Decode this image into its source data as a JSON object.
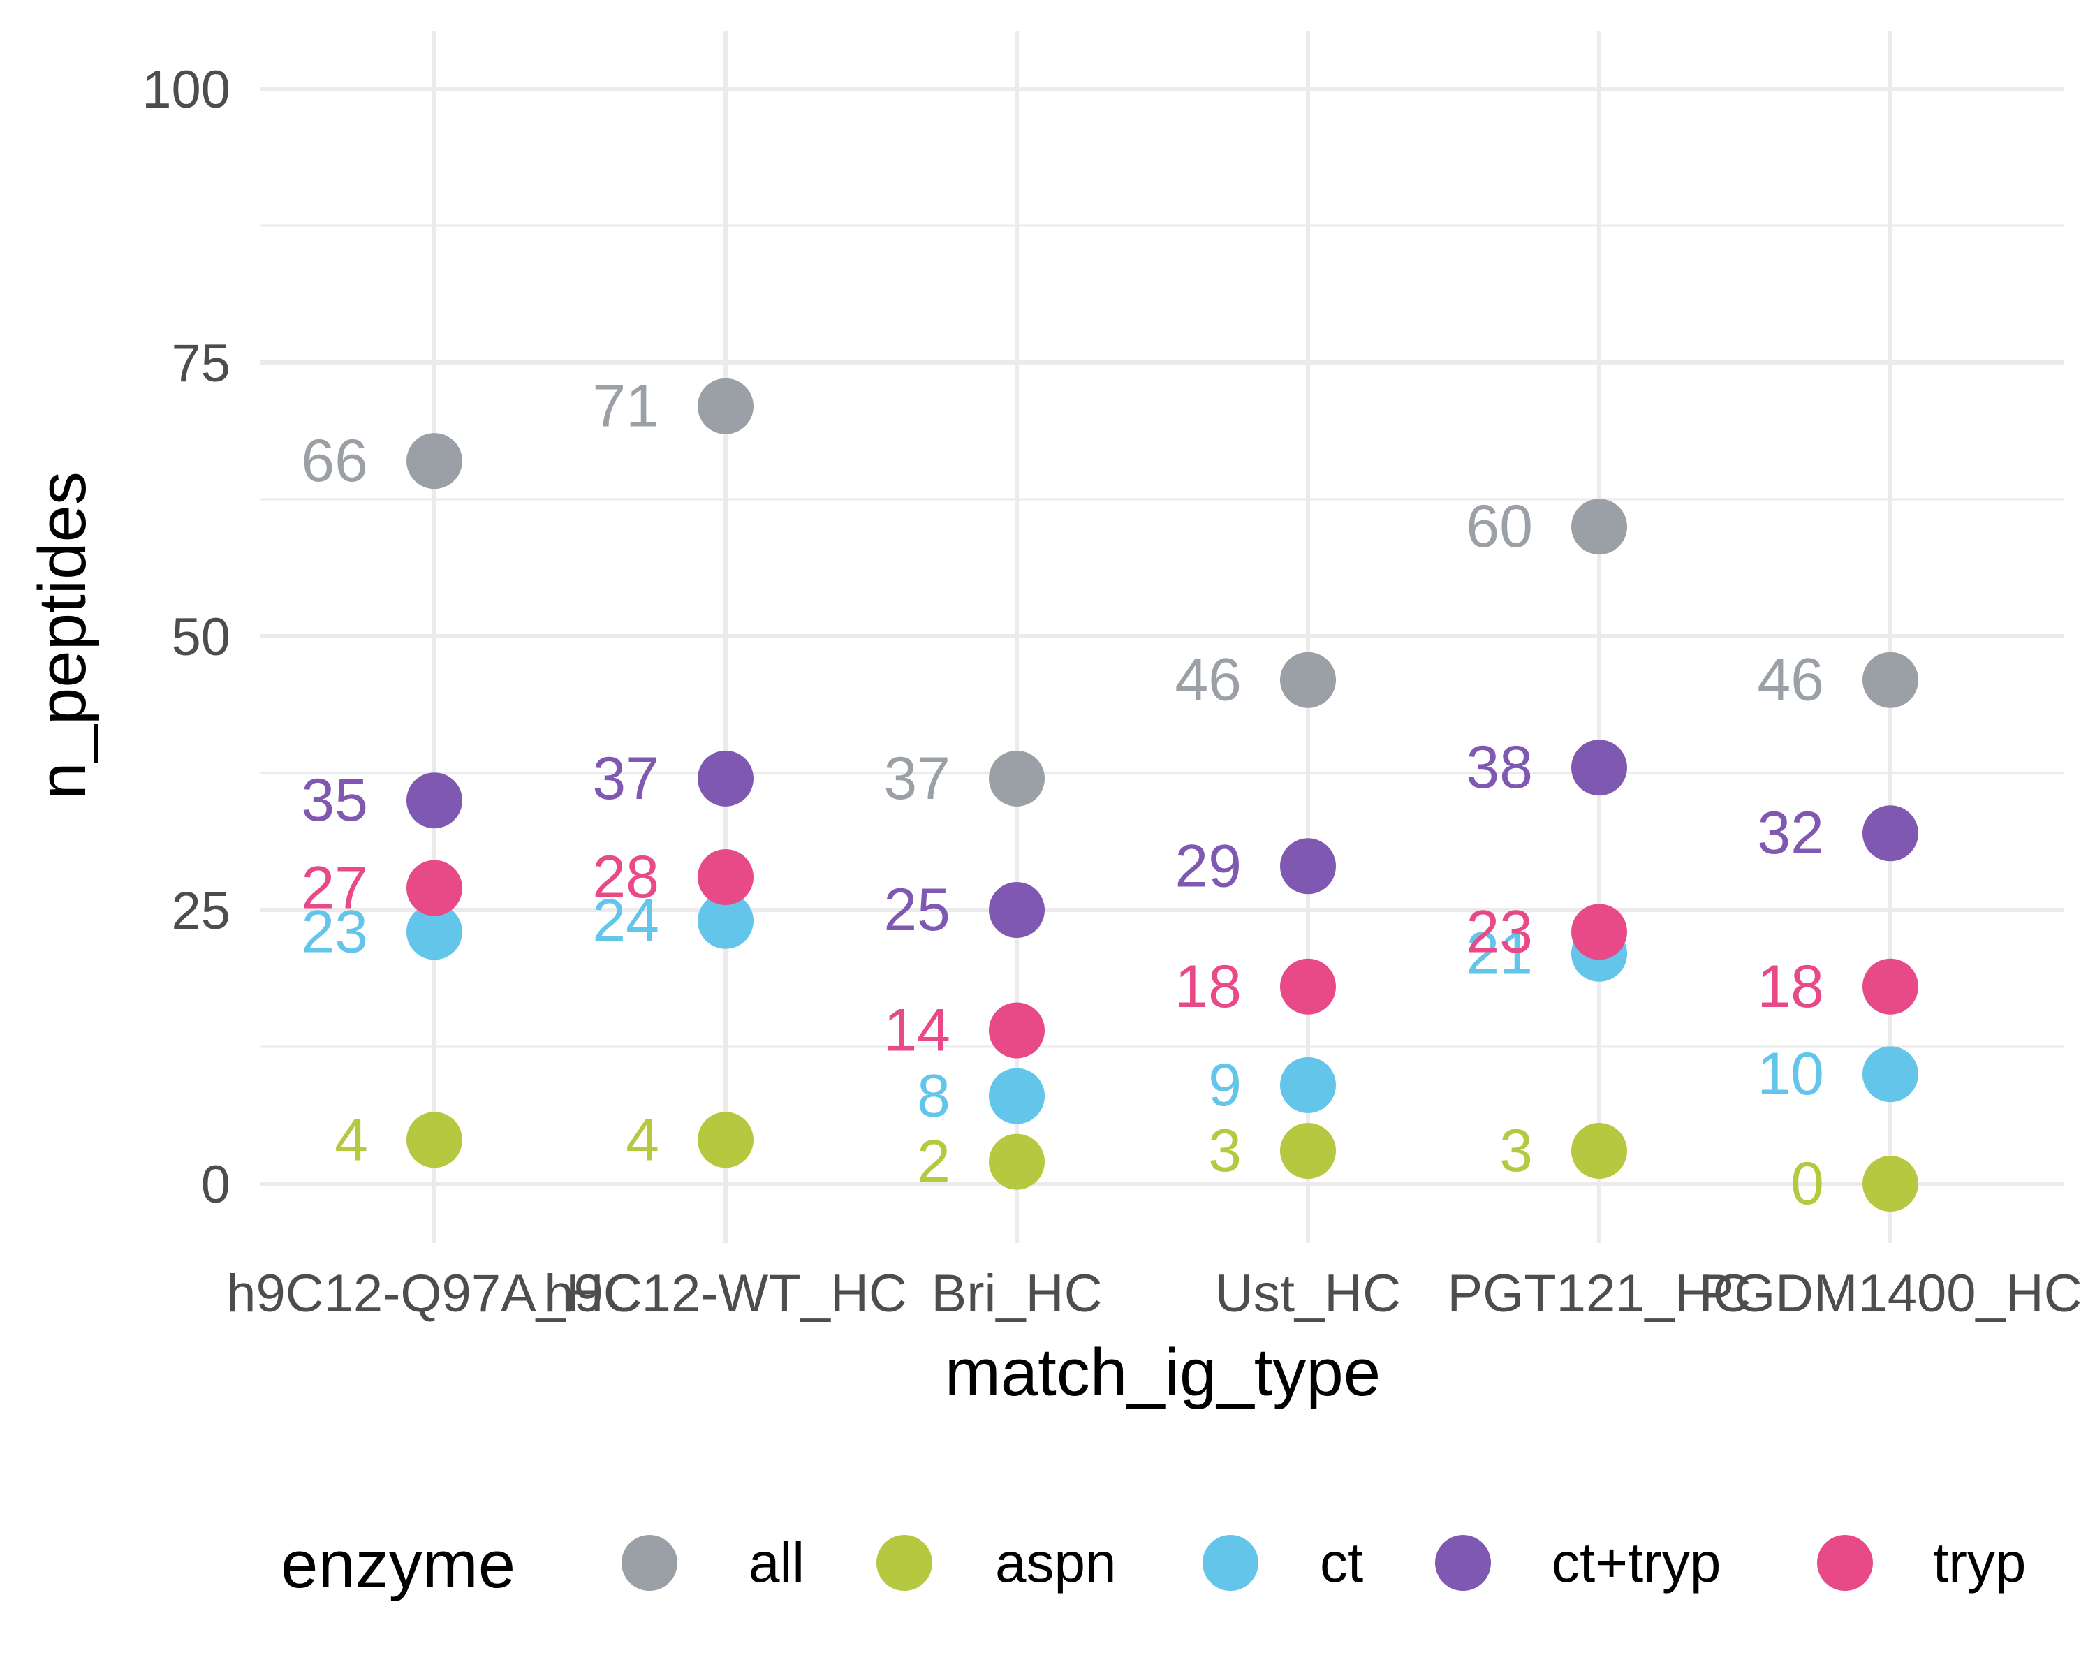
{
  "chart_data": {
    "type": "scatter",
    "title": "",
    "xlabel": "match_ig_type",
    "ylabel": "n_peptides",
    "categories": [
      "h9C12-Q97A_HC",
      "h9C12-WT_HC",
      "Bri_HC",
      "Ust_HC",
      "PGT121_HC",
      "PGDM1400_HC"
    ],
    "ylim": [
      0,
      100
    ],
    "yticks": [
      0,
      25,
      50,
      75,
      100
    ],
    "grid": true,
    "legend": {
      "title": "enzyme",
      "placement": "bottom"
    },
    "series": [
      {
        "name": "all",
        "color": "#9aa0a6",
        "values": [
          66,
          71,
          37,
          46,
          60,
          46
        ]
      },
      {
        "name": "aspn",
        "color": "#b5c83f",
        "values": [
          4,
          4,
          2,
          3,
          3,
          0
        ]
      },
      {
        "name": "ct",
        "color": "#63c5ea",
        "values": [
          23,
          24,
          8,
          9,
          21,
          10
        ]
      },
      {
        "name": "ct+tryp",
        "color": "#7f58b1",
        "values": [
          35,
          37,
          25,
          29,
          38,
          32
        ]
      },
      {
        "name": "tryp",
        "color": "#e84a88",
        "values": [
          27,
          28,
          14,
          18,
          23,
          18
        ]
      }
    ]
  }
}
